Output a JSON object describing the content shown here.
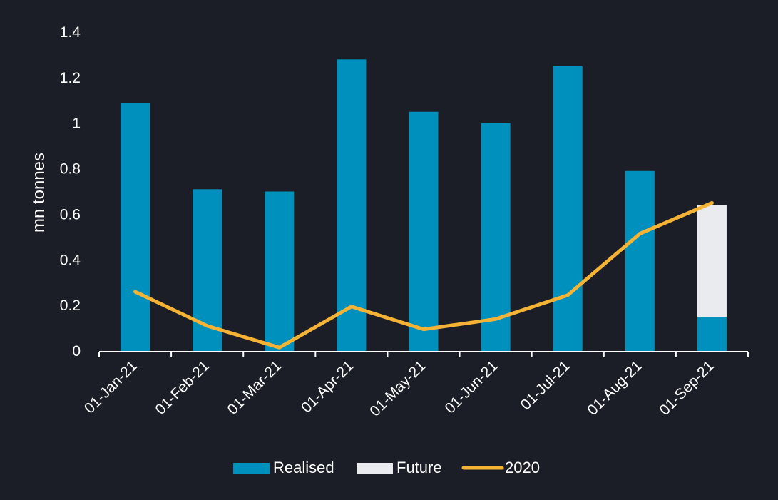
{
  "chart_data": {
    "type": "bar",
    "title": "",
    "xlabel": "",
    "ylabel": "mn tonnes",
    "ylim": [
      0,
      1.4
    ],
    "yticks": [
      0,
      0.2,
      0.4,
      0.6,
      0.8,
      1,
      1.2,
      1.4
    ],
    "ytick_labels": [
      "0",
      "0.2",
      "0.4",
      "0.6",
      "0.8",
      "1",
      "1.2",
      "1.4"
    ],
    "categories": [
      "01-Jan-21",
      "01-Feb-21",
      "01-Mar-21",
      "01-Apr-21",
      "01-May-21",
      "01-Jun-21",
      "01-Jul-21",
      "01-Aug-21",
      "01-Sep-21"
    ],
    "series": [
      {
        "name": "Realised",
        "kind": "bar",
        "stack": "main",
        "color": "#0090bd",
        "values": [
          1.09,
          0.71,
          0.7,
          1.28,
          1.05,
          1.0,
          1.25,
          0.79,
          0.15
        ]
      },
      {
        "name": "Future",
        "kind": "bar",
        "stack": "main",
        "color": "#e9ebef",
        "values": [
          0,
          0,
          0,
          0,
          0,
          0,
          0,
          0,
          0.49
        ]
      },
      {
        "name": "2020",
        "kind": "line",
        "color": "#f5b335",
        "values": [
          0.26,
          0.11,
          0.015,
          0.195,
          0.095,
          0.14,
          0.245,
          0.515,
          0.65
        ]
      }
    ],
    "legend_position": "bottom-center",
    "grid": false
  }
}
